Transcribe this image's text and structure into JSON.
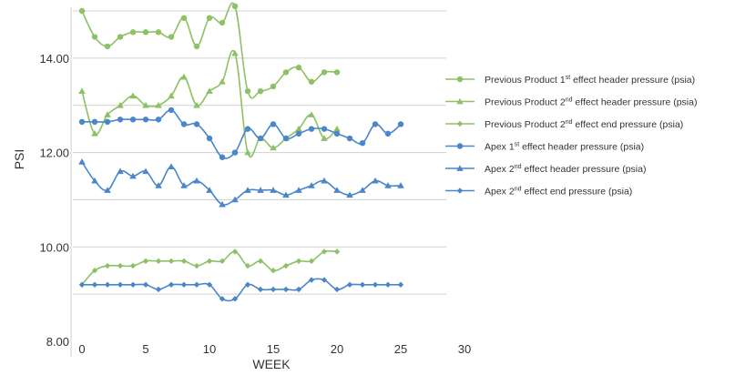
{
  "chart_data": {
    "type": "line",
    "xlabel": "WEEK",
    "ylabel": "PSI",
    "xlim": [
      0,
      30
    ],
    "ylim": [
      8.0,
      15.0
    ],
    "x_ticks": [
      "0",
      "5",
      "10",
      "15",
      "20",
      "25",
      "30"
    ],
    "y_ticks": [
      "8.00",
      "10.00",
      "12.00",
      "14.00"
    ],
    "grid": "horizontal",
    "legend_position": "right",
    "colors": {
      "previous": "#8dc165",
      "apex": "#4a86c8",
      "grid": "#d0d0d0"
    },
    "series": [
      {
        "name": "Previous Product 1st effect header pressure (psia)",
        "legend": {
          "prefix": "Previous Product 1",
          "sup": "st",
          "suffix": " effect header pressure (psia)"
        },
        "color": "#8dc165",
        "marker": "circle",
        "x": [
          0,
          1,
          2,
          3,
          4,
          5,
          6,
          7,
          8,
          9,
          10,
          11,
          12,
          13,
          14,
          15,
          16,
          17,
          18,
          19,
          20
        ],
        "y": [
          15.0,
          14.45,
          14.25,
          14.45,
          14.55,
          14.55,
          14.55,
          14.45,
          14.85,
          14.25,
          14.85,
          14.75,
          15.1,
          13.3,
          13.3,
          13.4,
          13.7,
          13.8,
          13.5,
          13.7,
          13.7
        ]
      },
      {
        "name": "Previous Product 2nd effect header pressure (psia)",
        "legend": {
          "prefix": "Previous Product 2",
          "sup": "nd",
          "suffix": " effect header pressure (psia)"
        },
        "color": "#8dc165",
        "marker": "triangle",
        "x": [
          0,
          1,
          2,
          3,
          4,
          5,
          6,
          7,
          8,
          9,
          10,
          11,
          12,
          13,
          14,
          15,
          16,
          17,
          18,
          19,
          20
        ],
        "y": [
          13.3,
          12.4,
          12.8,
          13.0,
          13.2,
          13.0,
          13.0,
          13.2,
          13.6,
          13.0,
          13.3,
          13.5,
          14.1,
          12.0,
          12.3,
          12.1,
          12.3,
          12.5,
          12.8,
          12.3,
          12.5
        ]
      },
      {
        "name": "Previous Product 2nd effect end pressure (psia)",
        "legend": {
          "prefix": "Previous Product 2",
          "sup": "nd",
          "suffix": " effect end pressure (psia)"
        },
        "color": "#8dc165",
        "marker": "diamond",
        "x": [
          0,
          1,
          2,
          3,
          4,
          5,
          6,
          7,
          8,
          9,
          10,
          11,
          12,
          13,
          14,
          15,
          16,
          17,
          18,
          19,
          20
        ],
        "y": [
          9.2,
          9.5,
          9.6,
          9.6,
          9.6,
          9.7,
          9.7,
          9.7,
          9.7,
          9.6,
          9.7,
          9.7,
          9.9,
          9.6,
          9.7,
          9.5,
          9.6,
          9.7,
          9.7,
          9.9,
          9.9
        ]
      },
      {
        "name": "Apex 1st effect header pressure (psia)",
        "legend": {
          "prefix": "Apex 1",
          "sup": "st",
          "suffix": " effect header pressure (psia)"
        },
        "color": "#4a86c8",
        "marker": "circle",
        "x": [
          0,
          1,
          2,
          3,
          4,
          5,
          6,
          7,
          8,
          9,
          10,
          11,
          12,
          13,
          14,
          15,
          16,
          17,
          18,
          19,
          20,
          21,
          22,
          23,
          24,
          25
        ],
        "y": [
          12.65,
          12.65,
          12.65,
          12.7,
          12.7,
          12.7,
          12.7,
          12.9,
          12.6,
          12.6,
          12.3,
          11.9,
          12.0,
          12.5,
          12.3,
          12.6,
          12.3,
          12.4,
          12.5,
          12.5,
          12.4,
          12.3,
          12.2,
          12.6,
          12.4,
          12.6
        ]
      },
      {
        "name": "Apex 2nd effect header pressure (psia)",
        "legend": {
          "prefix": "Apex 2",
          "sup": "nd",
          "suffix": " effect header pressure (psia)"
        },
        "color": "#4a86c8",
        "marker": "triangle",
        "x": [
          0,
          1,
          2,
          3,
          4,
          5,
          6,
          7,
          8,
          9,
          10,
          11,
          12,
          13,
          14,
          15,
          16,
          17,
          18,
          19,
          20,
          21,
          22,
          23,
          24,
          25
        ],
        "y": [
          11.8,
          11.4,
          11.2,
          11.6,
          11.5,
          11.6,
          11.3,
          11.7,
          11.3,
          11.4,
          11.2,
          10.9,
          11.0,
          11.2,
          11.2,
          11.2,
          11.1,
          11.2,
          11.3,
          11.4,
          11.2,
          11.1,
          11.2,
          11.4,
          11.3,
          11.3
        ]
      },
      {
        "name": "Apex 2nd effect end pressure (psia)",
        "legend": {
          "prefix": "Apex 2",
          "sup": "nd",
          "suffix": " effect end pressure (psia)"
        },
        "color": "#4a86c8",
        "marker": "diamond",
        "x": [
          0,
          1,
          2,
          3,
          4,
          5,
          6,
          7,
          8,
          9,
          10,
          11,
          12,
          13,
          14,
          15,
          16,
          17,
          18,
          19,
          20,
          21,
          22,
          23,
          24,
          25
        ],
        "y": [
          9.2,
          9.2,
          9.2,
          9.2,
          9.2,
          9.2,
          9.1,
          9.2,
          9.2,
          9.2,
          9.2,
          8.9,
          8.9,
          9.2,
          9.1,
          9.1,
          9.1,
          9.1,
          9.3,
          9.3,
          9.1,
          9.2,
          9.2,
          9.2,
          9.2,
          9.2
        ]
      }
    ]
  }
}
